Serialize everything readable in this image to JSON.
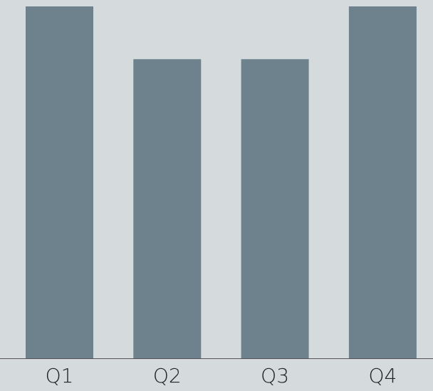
{
  "chart_data": {
    "type": "bar",
    "categories": [
      "Q1",
      "Q2",
      "Q3",
      "Q4"
    ],
    "values": [
      100,
      85,
      85,
      100
    ],
    "color": "#6e828d"
  }
}
